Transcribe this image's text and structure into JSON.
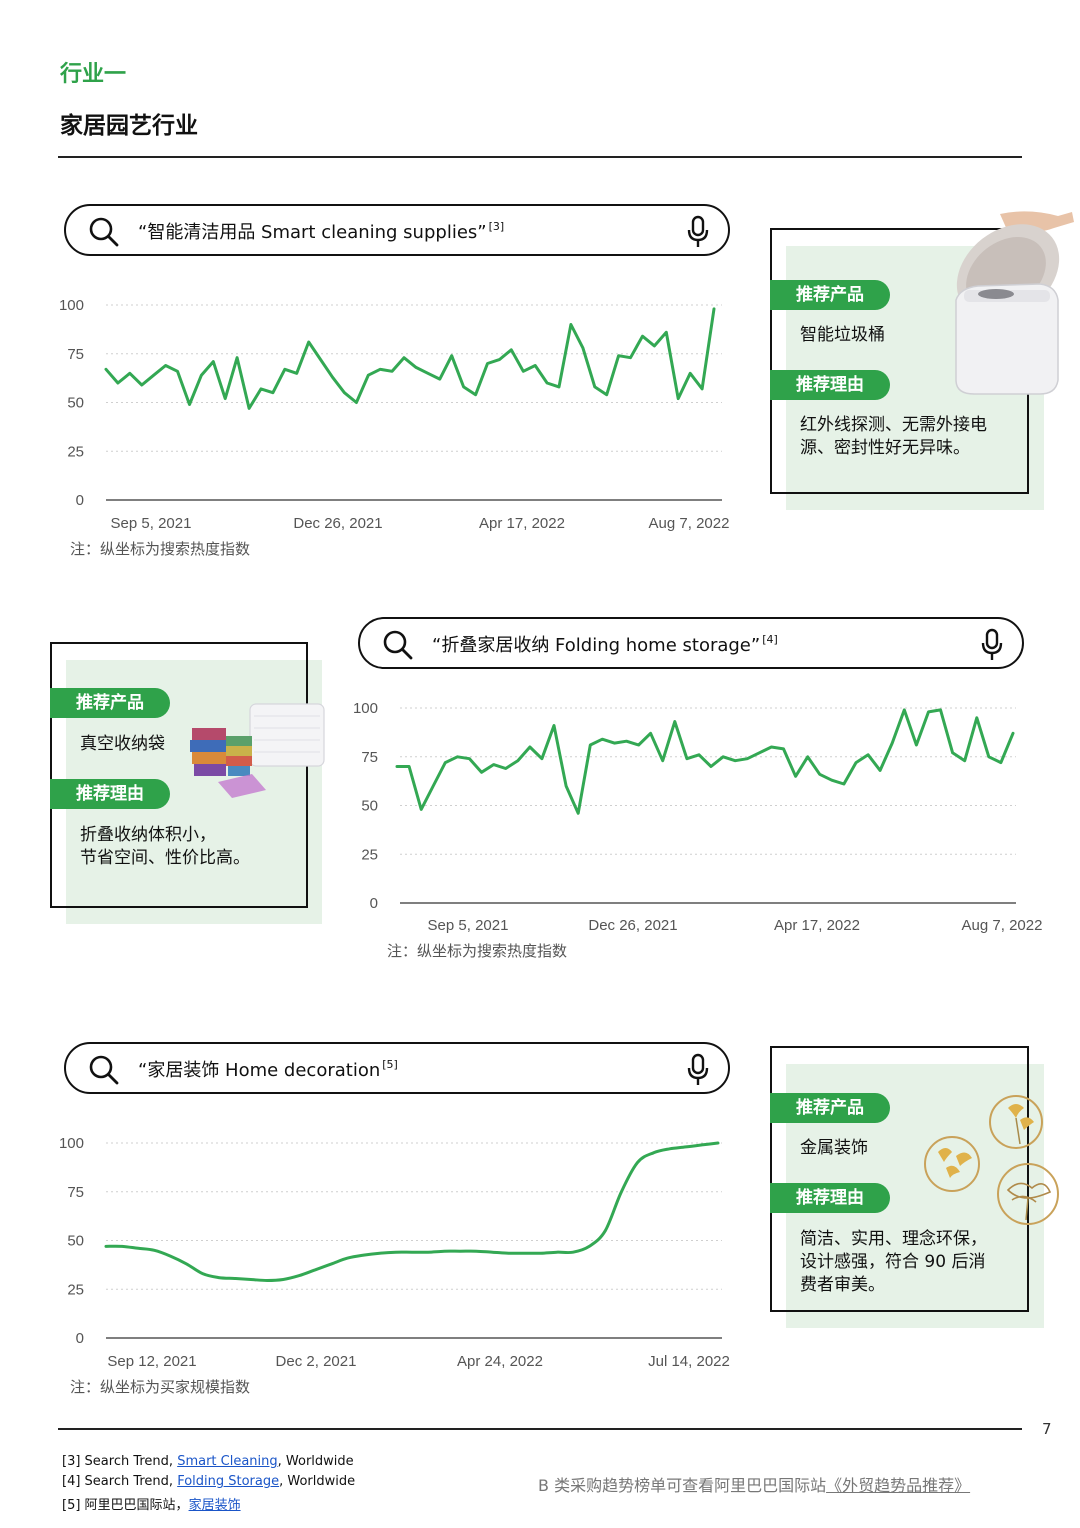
{
  "header": {
    "kicker": "行业一",
    "title": "家居园艺行业"
  },
  "colors": {
    "accent": "#2fa24a",
    "line": "#33a853",
    "card_bg": "#e6f2e7"
  },
  "sections": [
    {
      "search": {
        "text": "“智能清洁用品 Smart cleaning supplies”",
        "ref": "[3]",
        "icons": [
          "search-icon",
          "microphone-icon"
        ]
      },
      "note": "注：纵坐标为搜索热度指数",
      "card": {
        "product_label": "推荐产品",
        "product": "智能垃圾桶",
        "reason_label": "推荐理由",
        "reason_lines": [
          "红外线探测、无需外接电",
          "源、密封性好无异味。"
        ]
      }
    },
    {
      "search": {
        "text": "“折叠家居收纳 Folding home storage”",
        "ref": "[4]",
        "icons": [
          "search-icon",
          "microphone-icon"
        ]
      },
      "note": "注：纵坐标为搜索热度指数",
      "card": {
        "product_label": "推荐产品",
        "product": "真空收纳袋",
        "reason_label": "推荐理由",
        "reason_lines": [
          "折叠收纳体积小，",
          "节省空间、性价比高。"
        ]
      }
    },
    {
      "search": {
        "text": "“家居装饰 Home decoration",
        "ref": "[5]",
        "icons": [
          "search-icon",
          "microphone-icon"
        ]
      },
      "note": "注：纵坐标为买家规模指数",
      "card": {
        "product_label": "推荐产品",
        "product": "金属装饰",
        "reason_label": "推荐理由",
        "reason_lines": [
          "简洁、实用、理念环保，",
          "设计感强，符合 90 后消",
          "费者审美。"
        ]
      }
    }
  ],
  "chart_data": [
    {
      "type": "line",
      "yticks": [
        0,
        25,
        50,
        75,
        100
      ],
      "ylim": [
        0,
        100
      ],
      "xtick_labels": [
        "Sep 5, 2021",
        "Dec 26, 2021",
        "Apr 17, 2022",
        "Aug 7, 2022"
      ],
      "grid": true,
      "values": [
        67,
        60,
        65,
        59,
        64,
        69,
        66,
        49,
        64,
        71,
        52,
        73,
        47,
        57,
        55,
        67,
        65,
        81,
        72,
        63,
        55,
        50,
        64,
        67,
        66,
        73,
        68,
        65,
        62,
        74,
        58,
        54,
        70,
        72,
        77,
        66,
        69,
        60,
        58,
        90,
        78,
        58,
        54,
        74,
        73,
        84,
        79,
        86,
        52,
        65,
        57,
        98
      ]
    },
    {
      "type": "line",
      "yticks": [
        0,
        25,
        50,
        75,
        100
      ],
      "ylim": [
        0,
        100
      ],
      "xtick_labels": [
        "Sep 5, 2021",
        "Dec 26, 2021",
        "Apr 17, 2022",
        "Aug 7, 2022"
      ],
      "grid": true,
      "values": [
        70,
        70,
        48,
        60,
        72,
        75,
        74,
        67,
        71,
        69,
        73,
        80,
        74,
        91,
        60,
        46,
        81,
        84,
        82,
        83,
        81,
        87,
        73,
        93,
        74,
        76,
        70,
        75,
        73,
        74,
        77,
        80,
        79,
        65,
        75,
        66,
        63,
        61,
        72,
        76,
        68,
        82,
        99,
        81,
        98,
        99,
        77,
        73,
        95,
        75,
        72,
        87
      ]
    },
    {
      "type": "line",
      "yticks": [
        0,
        25,
        50,
        75,
        100
      ],
      "ylim": [
        0,
        100
      ],
      "xtick_labels": [
        "Sep 12, 2021",
        "Dec 2, 2021",
        "Apr 24, 2022",
        "Jul 14, 2022"
      ],
      "grid": true,
      "values": [
        47,
        47,
        46,
        45,
        42,
        38,
        33,
        31,
        30.5,
        30,
        29.5,
        30,
        32,
        35,
        38,
        41,
        42.5,
        43.5,
        44,
        44,
        44,
        44.5,
        44.5,
        44.5,
        44,
        43.5,
        43.5,
        43.5,
        44,
        44,
        47,
        55,
        75,
        90,
        95,
        97,
        98,
        99,
        100
      ]
    }
  ],
  "page_number": "7",
  "footnotes": [
    {
      "prefix": "[3] Search Trend, ",
      "link": "Smart Cleaning",
      "suffix": ", Worldwide"
    },
    {
      "prefix": "[4] Search Trend, ",
      "link": "Folding Storage",
      "suffix": ", Worldwide"
    },
    {
      "prefix": "[5] 阿里巴巴国际站，",
      "link": "家居装饰",
      "suffix": ""
    }
  ],
  "bottom_note": {
    "text": "B 类采购趋势榜单可查看阿里巴巴国际站",
    "link": "《外贸趋势品推荐》"
  }
}
